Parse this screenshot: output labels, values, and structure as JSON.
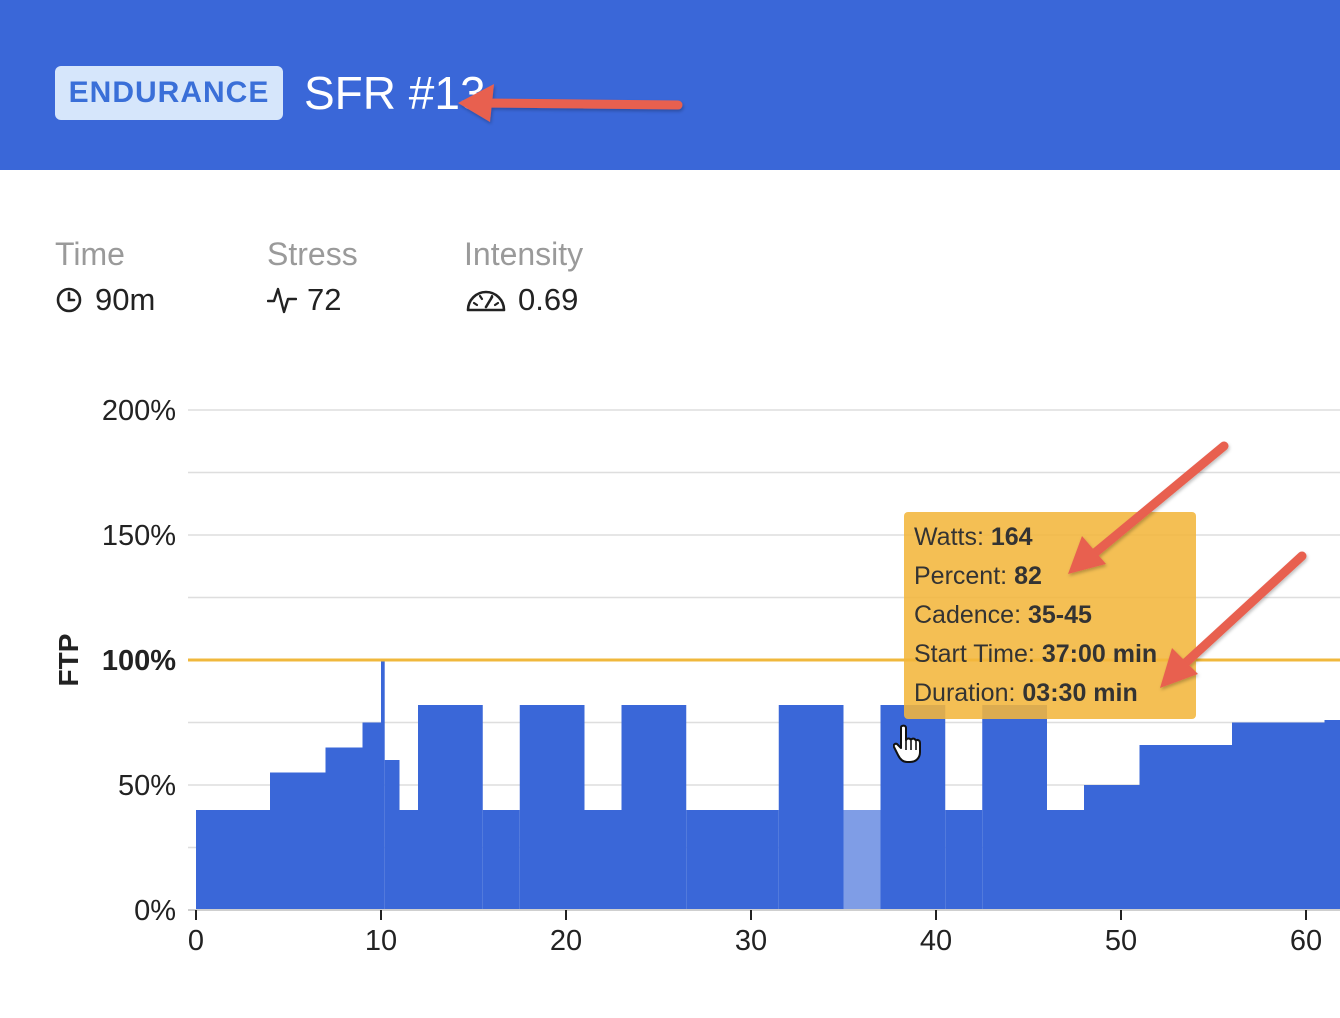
{
  "header": {
    "badge": "ENDURANCE",
    "title": "SFR #13"
  },
  "metrics": [
    {
      "label": "Time",
      "value": "90m",
      "icon": "clock-icon"
    },
    {
      "label": "Stress",
      "value": "72",
      "icon": "pulse-icon"
    },
    {
      "label": "Intensity",
      "value": "0.69",
      "icon": "speedometer-icon"
    }
  ],
  "chart_data": {
    "type": "bar",
    "ylabel": "FTP",
    "y_ticks": [
      "0%",
      "50%",
      "100%",
      "150%",
      "200%"
    ],
    "x_ticks": [
      "0",
      "10",
      "20",
      "30",
      "40",
      "50",
      "60"
    ],
    "ylim": [
      0,
      200
    ],
    "xlim": [
      0,
      62
    ],
    "ftp_line": 100,
    "highlight_index": 14,
    "segments": [
      {
        "start": 0,
        "end": 4,
        "value": 40
      },
      {
        "start": 4,
        "end": 7,
        "value": 55
      },
      {
        "start": 7,
        "end": 9,
        "value": 65
      },
      {
        "start": 9,
        "end": 10,
        "value": 75
      },
      {
        "start": 10,
        "end": 10.2,
        "value": 100
      },
      {
        "start": 10.2,
        "end": 11,
        "value": 60
      },
      {
        "start": 11,
        "end": 12,
        "value": 40
      },
      {
        "start": 12,
        "end": 15.5,
        "value": 82
      },
      {
        "start": 15.5,
        "end": 17.5,
        "value": 40
      },
      {
        "start": 17.5,
        "end": 21,
        "value": 82
      },
      {
        "start": 21,
        "end": 23,
        "value": 40
      },
      {
        "start": 23,
        "end": 26.5,
        "value": 82
      },
      {
        "start": 26.5,
        "end": 31.5,
        "value": 40
      },
      {
        "start": 31.5,
        "end": 35,
        "value": 82
      },
      {
        "start": 35,
        "end": 37,
        "value": 40
      },
      {
        "start": 37,
        "end": 40.5,
        "value": 82
      },
      {
        "start": 40.5,
        "end": 42.5,
        "value": 40
      },
      {
        "start": 42.5,
        "end": 46,
        "value": 82
      },
      {
        "start": 46,
        "end": 48,
        "value": 40
      },
      {
        "start": 48,
        "end": 51,
        "value": 50
      },
      {
        "start": 51,
        "end": 56,
        "value": 66
      },
      {
        "start": 56,
        "end": 61,
        "value": 75
      },
      {
        "start": 61,
        "end": 62,
        "value": 76
      }
    ]
  },
  "tooltip": {
    "watts_label": "Watts:",
    "watts": "164",
    "percent_label": "Percent:",
    "percent": "82",
    "cadence_label": "Cadence:",
    "cadence": "35-45",
    "start_label": "Start Time:",
    "start": "37:00 min",
    "duration_label": "Duration:",
    "duration": "03:30 min"
  },
  "colors": {
    "header": "#3a67d8",
    "bar": "#3a67d8",
    "bar_highlight": "#7f9de6",
    "ftp_line": "#f0b83c",
    "tooltip": "#f3b63c",
    "arrow": "#e8604f"
  }
}
